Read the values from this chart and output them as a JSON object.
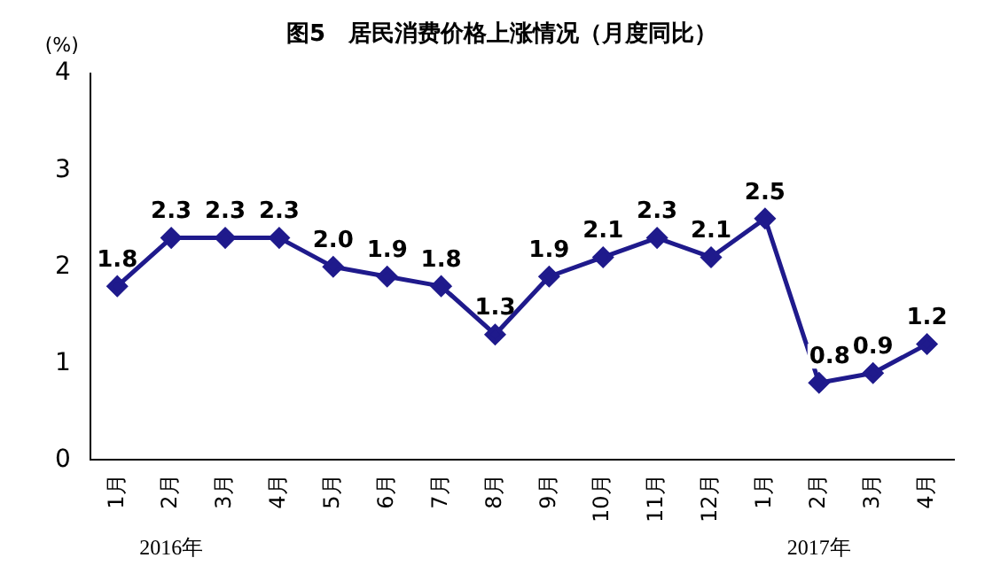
{
  "chart_data": {
    "type": "line",
    "title": "图5　居民消费价格上涨情况（月度同比）",
    "ylabel": "(%)",
    "categories": [
      "1月",
      "2月",
      "3月",
      "4月",
      "5月",
      "6月",
      "7月",
      "8月",
      "9月",
      "10月",
      "11月",
      "12月",
      "1月",
      "2月",
      "3月",
      "4月"
    ],
    "series": [
      {
        "color": "#1f1a8c",
        "values": [
          1.8,
          2.3,
          2.3,
          2.3,
          2.0,
          1.9,
          1.8,
          1.3,
          1.9,
          2.1,
          2.3,
          2.1,
          2.5,
          0.8,
          0.9,
          1.2
        ],
        "value_labels": [
          "1.8",
          "2.3",
          "2.3",
          "2.3",
          "2.0",
          "1.9",
          "1.8",
          "1.3",
          "1.9",
          "2.1",
          "2.3",
          "2.1",
          "2.5",
          "0.8",
          "0.9",
          "1.2"
        ]
      }
    ],
    "ylim": [
      0,
      4
    ],
    "yticks": [
      0,
      1,
      2,
      3,
      4
    ],
    "grid": false,
    "legend": false,
    "marker": "diamond",
    "line_style": "solid",
    "annotations": [
      "2016年",
      "2017年"
    ]
  }
}
